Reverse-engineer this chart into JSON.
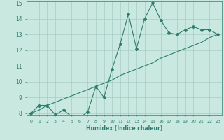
{
  "xlabel": "Humidex (Indice chaleur)",
  "x_values": [
    0,
    1,
    2,
    3,
    4,
    5,
    6,
    7,
    8,
    9,
    10,
    11,
    12,
    13,
    14,
    15,
    16,
    17,
    18,
    19,
    20,
    21,
    22,
    23
  ],
  "y_curve": [
    8.0,
    8.5,
    8.5,
    7.9,
    8.2,
    7.8,
    7.7,
    8.1,
    9.7,
    9.0,
    10.8,
    12.4,
    14.3,
    12.1,
    14.0,
    15.0,
    13.9,
    13.1,
    13.0,
    13.3,
    13.5,
    13.3,
    13.3,
    13.0
  ],
  "y_line": [
    8.0,
    8.2,
    8.5,
    8.7,
    8.9,
    9.1,
    9.3,
    9.5,
    9.7,
    9.9,
    10.1,
    10.4,
    10.6,
    10.8,
    11.0,
    11.2,
    11.5,
    11.7,
    11.9,
    12.1,
    12.3,
    12.5,
    12.8,
    13.0
  ],
  "ylim": [
    8,
    15
  ],
  "xlim": [
    -0.5,
    23.5
  ],
  "yticks": [
    8,
    9,
    10,
    11,
    12,
    13,
    14,
    15
  ],
  "xticks": [
    0,
    1,
    2,
    3,
    4,
    5,
    6,
    7,
    8,
    9,
    10,
    11,
    12,
    13,
    14,
    15,
    16,
    17,
    18,
    19,
    20,
    21,
    22,
    23
  ],
  "line_color": "#2e7d6e",
  "bg_color": "#c8e8e0",
  "grid_color": "#a8ccc4"
}
